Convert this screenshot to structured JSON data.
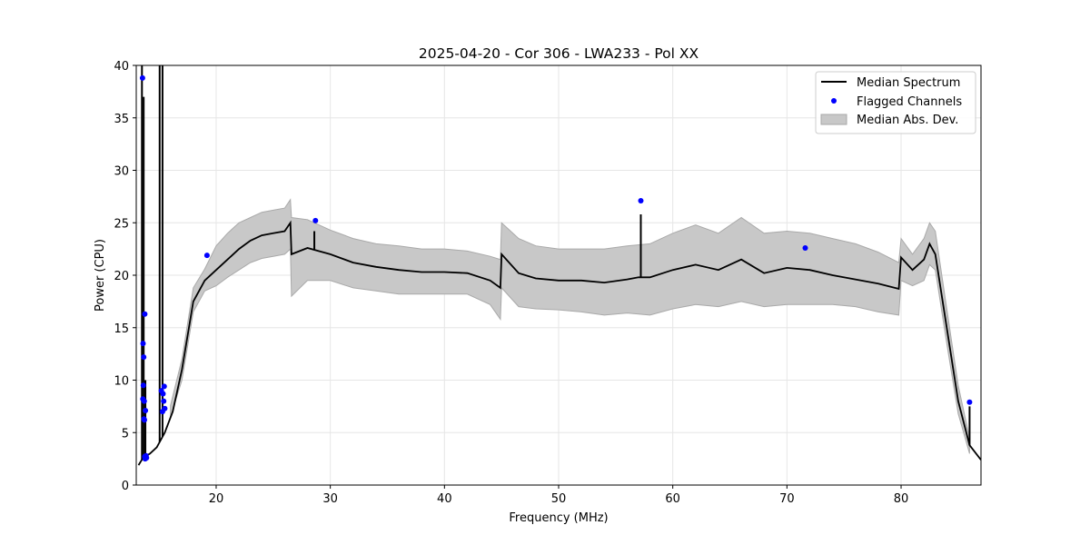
{
  "chart_data": {
    "type": "line",
    "title": "2025-04-20 - Cor 306 - LWA233 - Pol XX",
    "xlabel": "Frequency (MHz)",
    "ylabel": "Power (CPU)",
    "xlim": [
      13.0,
      87.0
    ],
    "ylim": [
      0,
      40
    ],
    "xticks": [
      20,
      30,
      40,
      50,
      60,
      70,
      80
    ],
    "yticks": [
      0,
      5,
      10,
      15,
      20,
      25,
      30,
      35,
      40
    ],
    "grid": true,
    "legend_position": "top-right",
    "colors": {
      "median": "#000000",
      "flagged": "#0000ff",
      "mad_fill": "#c8c8c8",
      "mad_edge": "#a9a9a9"
    },
    "series": [
      {
        "name": "Median Spectrum",
        "kind": "line",
        "x": [
          13.2,
          13.6,
          14.2,
          14.8,
          15.5,
          16.2,
          17.0,
          18.0,
          19.0,
          20.0,
          21.0,
          22.0,
          23.0,
          24.0,
          25.0,
          26.0,
          26.5,
          26.6,
          28.0,
          30.0,
          32.0,
          34.0,
          36.0,
          38.0,
          40.0,
          42.0,
          44.0,
          44.9,
          45.0,
          46.5,
          48.0,
          50.0,
          52.0,
          54.0,
          56.0,
          57.0,
          58.0,
          60.0,
          62.0,
          64.0,
          66.0,
          68.0,
          70.0,
          72.0,
          74.0,
          76.0,
          78.0,
          79.8,
          80.0,
          81.0,
          82.0,
          82.5,
          83.0,
          84.0,
          85.0,
          86.0,
          87.0
        ],
        "y": [
          1.9,
          2.6,
          3.0,
          3.6,
          5.0,
          7.0,
          11.0,
          17.5,
          19.5,
          20.5,
          21.5,
          22.5,
          23.3,
          23.8,
          24.0,
          24.2,
          25.0,
          22.0,
          22.6,
          22.0,
          21.2,
          20.8,
          20.5,
          20.3,
          20.3,
          20.2,
          19.5,
          18.8,
          22.0,
          20.2,
          19.7,
          19.5,
          19.5,
          19.3,
          19.6,
          19.8,
          19.8,
          20.5,
          21.0,
          20.5,
          21.5,
          20.2,
          20.7,
          20.5,
          20.0,
          19.6,
          19.2,
          18.7,
          21.7,
          20.5,
          21.5,
          23.0,
          22.0,
          15.0,
          8.0,
          3.8,
          2.4
        ]
      },
      {
        "name": "Flagged Channels",
        "kind": "scatter",
        "x": [
          13.55,
          13.75,
          13.6,
          13.65,
          13.62,
          13.58,
          13.7,
          13.8,
          13.68,
          13.72,
          13.85,
          13.9,
          13.78,
          13.74,
          15.2,
          15.35,
          15.45,
          15.5,
          15.3,
          15.4,
          19.2,
          28.7,
          57.2,
          71.6,
          86.0
        ],
        "y": [
          38.8,
          16.3,
          13.5,
          12.2,
          9.5,
          8.2,
          8.0,
          7.1,
          6.3,
          6.2,
          2.8,
          2.6,
          2.5,
          2.7,
          9.0,
          8.7,
          9.4,
          7.3,
          7.0,
          8.0,
          21.9,
          25.2,
          27.1,
          22.6,
          7.9
        ]
      },
      {
        "name": "Median Abs. Dev.",
        "kind": "band",
        "x": [
          16.0,
          17.0,
          18.0,
          19.0,
          20.0,
          21.0,
          22.0,
          23.0,
          24.0,
          25.0,
          26.0,
          26.5,
          26.6,
          28.0,
          30.0,
          32.0,
          34.0,
          36.0,
          38.0,
          40.0,
          42.0,
          44.0,
          44.9,
          45.0,
          46.5,
          48.0,
          50.0,
          52.0,
          54.0,
          56.0,
          58.0,
          60.0,
          62.0,
          64.0,
          66.0,
          68.0,
          70.0,
          72.0,
          74.0,
          76.0,
          78.0,
          79.8,
          80.0,
          81.0,
          82.0,
          82.5,
          83.0,
          84.0,
          85.0,
          86.0
        ],
        "lower": [
          6.5,
          10.0,
          16.5,
          18.5,
          19.0,
          19.8,
          20.5,
          21.2,
          21.6,
          21.8,
          22.0,
          22.5,
          18.0,
          19.5,
          19.5,
          18.8,
          18.5,
          18.2,
          18.2,
          18.2,
          18.2,
          17.2,
          15.8,
          18.8,
          17.0,
          16.8,
          16.7,
          16.5,
          16.2,
          16.4,
          16.2,
          16.8,
          17.2,
          17.0,
          17.5,
          17.0,
          17.2,
          17.2,
          17.2,
          17.0,
          16.5,
          16.2,
          19.5,
          19.0,
          19.5,
          21.0,
          20.5,
          13.5,
          6.8,
          3.0
        ],
        "upper": [
          7.6,
          12.0,
          18.8,
          20.6,
          22.8,
          24.0,
          25.0,
          25.5,
          26.0,
          26.2,
          26.4,
          27.2,
          25.5,
          25.3,
          24.3,
          23.5,
          23.0,
          22.8,
          22.5,
          22.5,
          22.3,
          21.8,
          21.5,
          25.0,
          23.5,
          22.8,
          22.5,
          22.5,
          22.5,
          22.8,
          23.0,
          24.0,
          24.8,
          24.0,
          25.5,
          24.0,
          24.2,
          24.0,
          23.5,
          23.0,
          22.2,
          21.2,
          23.5,
          22.0,
          23.5,
          25.0,
          24.2,
          16.8,
          9.5,
          4.5
        ]
      }
    ],
    "spikes": [
      {
        "x": 13.5,
        "y_top": 40.0
      },
      {
        "x": 13.65,
        "y_top": 37.0
      },
      {
        "x": 13.8,
        "y_top": 10.0
      },
      {
        "x": 15.05,
        "y_top": 40.0
      },
      {
        "x": 15.3,
        "y_top": 40.0
      },
      {
        "x": 28.6,
        "y_top": 24.2
      },
      {
        "x": 57.2,
        "y_top": 25.8
      },
      {
        "x": 86.0,
        "y_top": 7.5
      }
    ]
  }
}
